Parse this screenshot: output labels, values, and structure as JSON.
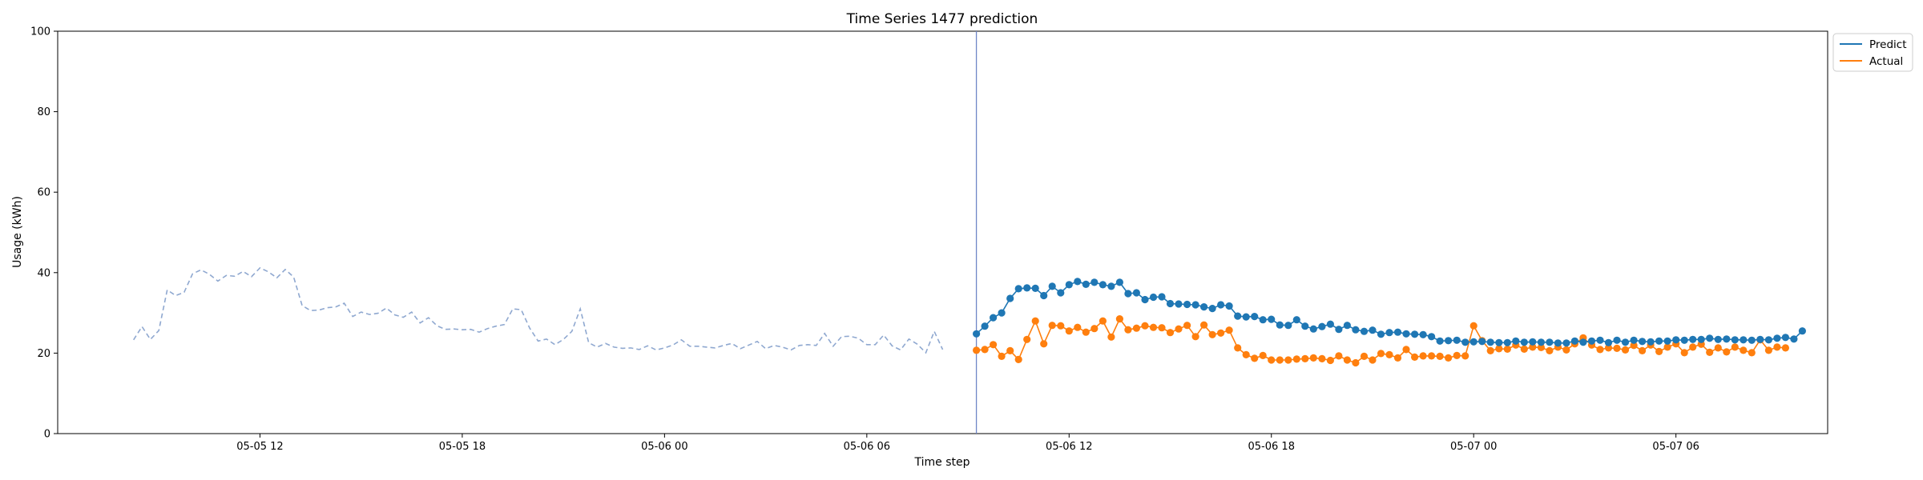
{
  "chart_data": {
    "type": "line",
    "title": "Time Series 1477 prediction",
    "xlabel": "Time step",
    "ylabel": "Usage (kWh)",
    "ylim": [
      0,
      100
    ],
    "yticks": [
      "0",
      "20",
      "40",
      "60",
      "80",
      "100"
    ],
    "xticks": [
      {
        "label": "05-05 12",
        "hours": 12
      },
      {
        "label": "05-05 18",
        "hours": 18
      },
      {
        "label": "05-06 00",
        "hours": 24
      },
      {
        "label": "05-06 06",
        "hours": 30
      },
      {
        "label": "05-06 12",
        "hours": 36
      },
      {
        "label": "05-06 18",
        "hours": 42
      },
      {
        "label": "05-07 00",
        "hours": 48
      },
      {
        "label": "05-07 06",
        "hours": 54
      }
    ],
    "xlim_hours": [
      6.0,
      58.5
    ],
    "x_step_hours": 0.25,
    "forecast_start_hours": 33.25,
    "history": {
      "start_hours": 8.25,
      "values": [
        23.3,
        26.6,
        23.4,
        25.6,
        35.7,
        34.3,
        35.1,
        39.7,
        40.7,
        39.6,
        37.9,
        39.3,
        39.1,
        40.3,
        39.0,
        41.2,
        40.2,
        38.7,
        40.8,
        38.9,
        31.8,
        30.6,
        30.7,
        31.3,
        31.5,
        32.4,
        29.1,
        30.2,
        29.6,
        29.9,
        31.2,
        29.5,
        28.9,
        30.2,
        27.5,
        28.8,
        26.8,
        25.9,
        26.0,
        25.8,
        25.9,
        25.2,
        26.1,
        26.7,
        27.1,
        31.0,
        30.8,
        26.2,
        23.0,
        23.5,
        22.1,
        23.4,
        25.4,
        31.0,
        22.6,
        21.5,
        22.4,
        21.5,
        21.2,
        21.3,
        20.9,
        21.8,
        20.8,
        21.3,
        22.0,
        23.3,
        21.7,
        21.7,
        21.5,
        21.3,
        21.9,
        22.4,
        21.1,
        22.0,
        22.9,
        21.1,
        21.9,
        21.5,
        20.8,
        21.9,
        22.1,
        21.9,
        24.9,
        21.7,
        24.1,
        24.2,
        23.7,
        22.1,
        22.1,
        24.5,
        21.8,
        20.8,
        23.5,
        22.2,
        20.1,
        25.4,
        20.9
      ]
    },
    "series": [
      {
        "name": "Predict",
        "color": "#1f77b4",
        "values": [
          24.8,
          26.7,
          28.8,
          30.0,
          33.6,
          36.0,
          36.2,
          36.1,
          34.3,
          36.6,
          35.0,
          37.0,
          37.8,
          37.1,
          37.6,
          37.0,
          36.6,
          37.6,
          34.8,
          35.0,
          33.3,
          33.9,
          34.0,
          32.3,
          32.2,
          32.1,
          32.0,
          31.5,
          31.1,
          32.0,
          31.7,
          29.2,
          29.0,
          29.1,
          28.3,
          28.4,
          27.0,
          26.9,
          28.3,
          26.7,
          26.0,
          26.6,
          27.2,
          25.9,
          26.9,
          25.8,
          25.4,
          25.7,
          24.7,
          25.1,
          25.2,
          24.8,
          24.7,
          24.6,
          24.1,
          23.0,
          23.1,
          23.2,
          22.7,
          22.8,
          22.9,
          22.7,
          22.6,
          22.6,
          23.0,
          22.7,
          22.8,
          22.7,
          22.7,
          22.5,
          22.5,
          23.0,
          22.7,
          23.0,
          23.2,
          22.6,
          23.2,
          22.7,
          23.2,
          22.9,
          22.8,
          23.0,
          23.0,
          23.3,
          23.2,
          23.4,
          23.4,
          23.7,
          23.4,
          23.5,
          23.3,
          23.3,
          23.2,
          23.4,
          23.3,
          23.7,
          23.9,
          23.5,
          25.5
        ]
      },
      {
        "name": "Actual",
        "color": "#ff7f0e",
        "values": [
          20.7,
          20.9,
          22.1,
          19.2,
          20.6,
          18.4,
          23.4,
          28.0,
          22.3,
          26.9,
          26.8,
          25.5,
          26.4,
          25.2,
          26.1,
          28.0,
          24.0,
          28.5,
          25.8,
          26.2,
          26.8,
          26.4,
          26.3,
          25.1,
          26.0,
          26.9,
          24.1,
          27.0,
          24.6,
          25.0,
          25.7,
          21.3,
          19.6,
          18.7,
          19.4,
          18.3,
          18.3,
          18.3,
          18.5,
          18.6,
          18.8,
          18.6,
          18.2,
          19.3,
          18.3,
          17.6,
          19.2,
          18.3,
          19.9,
          19.6,
          18.8,
          20.9,
          19.0,
          19.3,
          19.3,
          19.2,
          18.8,
          19.4,
          19.3,
          26.8,
          23.1,
          20.6,
          21.1,
          21.0,
          22.0,
          21.0,
          21.5,
          21.4,
          20.6,
          21.5,
          20.8,
          22.3,
          23.8,
          22.0,
          20.9,
          21.3,
          21.2,
          20.8,
          21.9,
          20.6,
          22.0,
          20.4,
          21.5,
          22.3,
          20.1,
          21.5,
          22.2,
          20.2,
          21.3,
          20.3,
          21.5,
          20.7,
          20.1,
          23.3,
          20.7,
          21.5,
          21.3
        ]
      }
    ],
    "legend": {
      "position": "top-right-outside"
    },
    "grid": false
  }
}
